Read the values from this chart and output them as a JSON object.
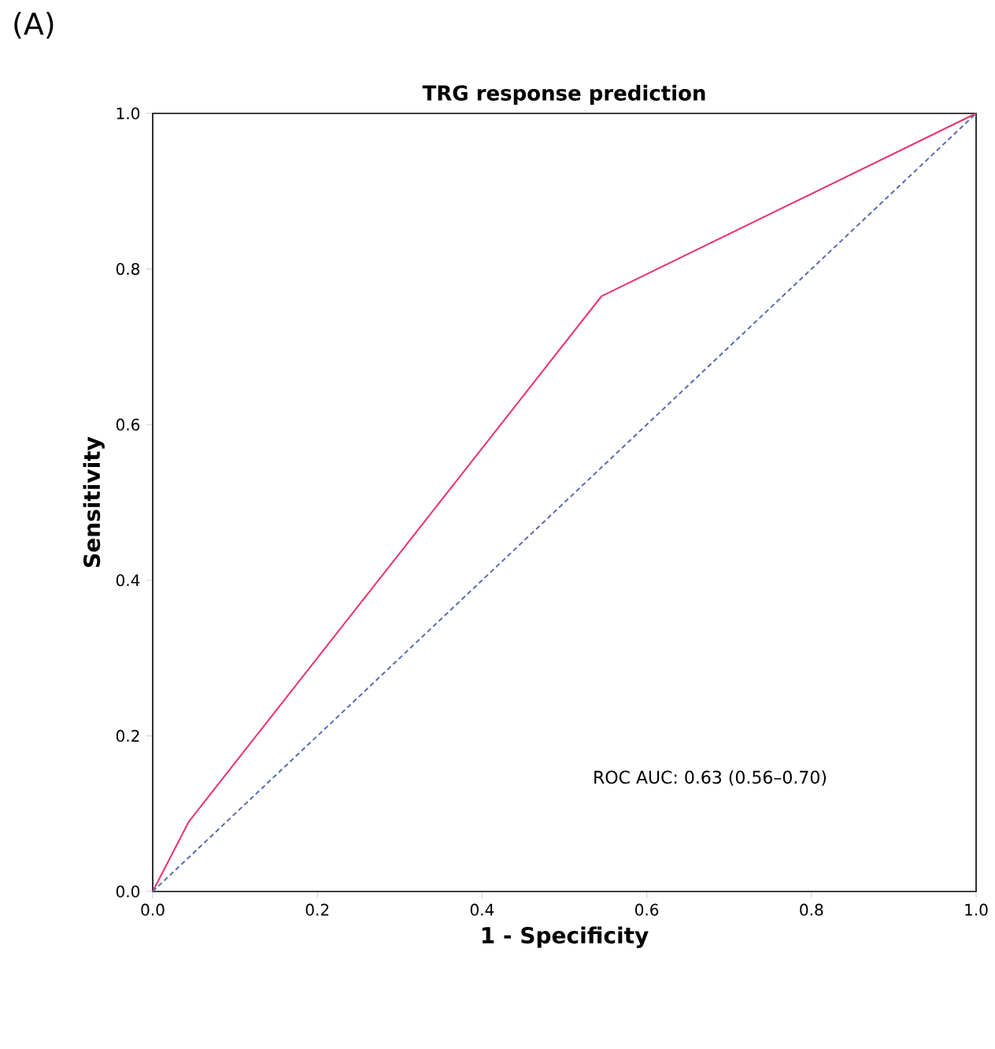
{
  "chart_data": {
    "type": "line",
    "title": "TRG response prediction",
    "xlabel": "1 - Specificity",
    "ylabel": "Sensitivity",
    "annotations": [
      "(A)",
      "ROC AUC: 0.63 (0.56–0.70)"
    ],
    "xlim": [
      0,
      1
    ],
    "ylim": [
      0,
      1
    ],
    "xticks": [
      {
        "value": 0,
        "label": "0.0"
      },
      {
        "value": 0.2,
        "label": "0.2"
      },
      {
        "value": 0.4,
        "label": "0.4"
      },
      {
        "value": 0.6,
        "label": "0.6"
      },
      {
        "value": 0.8,
        "label": "0.8"
      },
      {
        "value": 1,
        "label": "1.0"
      }
    ],
    "yticks": [
      {
        "value": 0,
        "label": "0.0"
      },
      {
        "value": 0.2,
        "label": "0.2"
      },
      {
        "value": 0.4,
        "label": "0.4"
      },
      {
        "value": 0.6,
        "label": "0.6"
      },
      {
        "value": 0.8,
        "label": "0.8"
      },
      {
        "value": 1,
        "label": "1.0"
      }
    ],
    "marker": "none",
    "series": [
      {
        "color": "#e8336b",
        "x": [
          0,
          0.044,
          0.545,
          1
        ],
        "values": [
          0,
          0.09,
          0.765,
          1
        ],
        "line_style": "solid"
      },
      {
        "color": "#5a6bb0",
        "x": [
          0,
          1
        ],
        "values": [
          0,
          1
        ],
        "line_style": "dashed"
      }
    ]
  }
}
